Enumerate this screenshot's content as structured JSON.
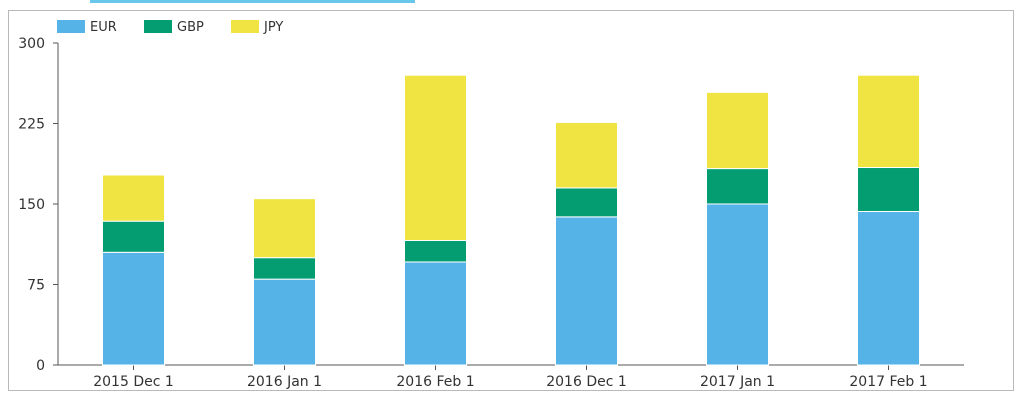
{
  "chart_data": {
    "type": "bar",
    "stacked": true,
    "categories": [
      "2015 Dec 1",
      "2016 Jan 1",
      "2016 Feb 1",
      "2016 Dec 1",
      "2017 Jan 1",
      "2017 Feb 1"
    ],
    "series": [
      {
        "name": "EUR",
        "color": "#56b3e8",
        "values": [
          105,
          80,
          96,
          138,
          150,
          143
        ]
      },
      {
        "name": "GBP",
        "color": "#049d72",
        "values": [
          29,
          20,
          20,
          27,
          33,
          41
        ]
      },
      {
        "name": "JPY",
        "color": "#f0e442",
        "values": [
          43,
          55,
          154,
          61,
          71,
          86
        ]
      }
    ],
    "yticks": [
      0,
      75,
      150,
      225,
      300
    ],
    "ylim": [
      0,
      300
    ],
    "legend_position": "top-left",
    "grid": false
  }
}
